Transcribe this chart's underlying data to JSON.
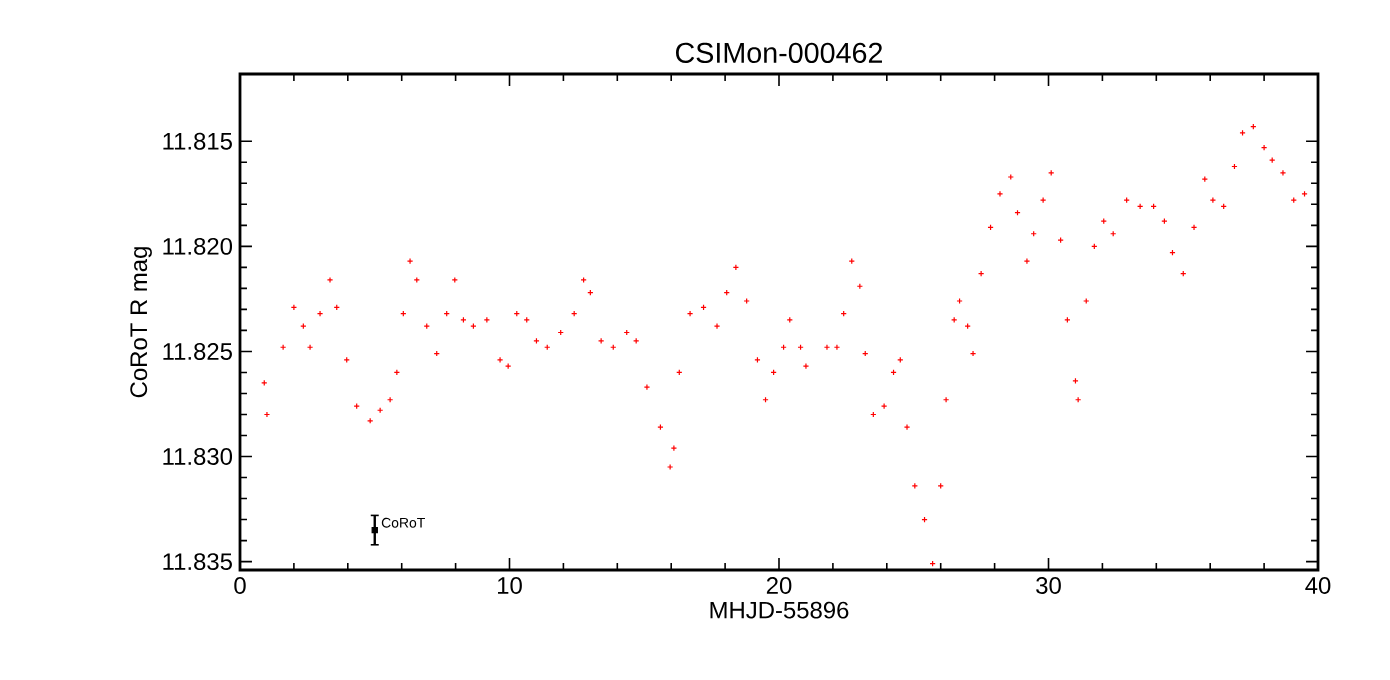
{
  "chart_data": {
    "type": "scatter",
    "title": "CSIMon-000462",
    "xlabel": "MHJD-55896",
    "ylabel": "CoRoT R mag",
    "xlim": [
      0,
      40
    ],
    "ylim": [
      11.8354,
      11.8118
    ],
    "xticks": [
      0,
      10,
      20,
      30,
      40
    ],
    "yticks": [
      11.815,
      {
        "value": 11.82,
        "label": "11.820"
      },
      11.825,
      {
        "value": 11.83,
        "label": "11.830"
      },
      11.835
    ],
    "marker": "cross",
    "series": [
      {
        "color": "#ff0000",
        "x": [
          0.9,
          1.0,
          1.6,
          2.0,
          2.35,
          2.6,
          2.97,
          3.34,
          3.59,
          3.96,
          4.33,
          4.83,
          5.2,
          5.57,
          5.82,
          6.06,
          6.31,
          6.56,
          6.93,
          7.3,
          7.67,
          7.97,
          8.29,
          8.66,
          9.16,
          9.65,
          9.95,
          10.27,
          10.64,
          11.0,
          11.4,
          11.9,
          12.4,
          12.75,
          13.0,
          13.4,
          13.85,
          14.35,
          14.7,
          15.1,
          15.6,
          15.96,
          16.1,
          16.3,
          16.7,
          17.2,
          17.7,
          18.06,
          18.4,
          18.8,
          19.2,
          19.5,
          19.8,
          20.17,
          20.4,
          20.8,
          21.0,
          21.78,
          22.15,
          22.4,
          22.7,
          23.0,
          23.2,
          23.5,
          23.9,
          24.25,
          24.5,
          24.75,
          25.04,
          25.4,
          25.7,
          26.0,
          26.2,
          26.5,
          26.7,
          27.0,
          27.2,
          27.5,
          27.85,
          28.2,
          28.6,
          28.85,
          29.2,
          29.45,
          29.8,
          30.1,
          30.45,
          30.7,
          31.0,
          31.1,
          31.4,
          31.7,
          32.05,
          32.4,
          32.9,
          33.4,
          33.9,
          34.3,
          34.6,
          35.0,
          35.4,
          35.8,
          36.1,
          36.5,
          36.9,
          37.2,
          37.6,
          38.0,
          38.3,
          38.7,
          39.1,
          39.5
        ],
        "values": [
          11.8265,
          11.828,
          11.8248,
          11.8229,
          11.8238,
          11.8248,
          11.8232,
          11.8216,
          11.8229,
          11.8254,
          11.8276,
          11.8283,
          11.8278,
          11.8273,
          11.826,
          11.8232,
          11.8207,
          11.8216,
          11.8238,
          11.8251,
          11.8232,
          11.8216,
          11.8235,
          11.8238,
          11.8235,
          11.8254,
          11.8257,
          11.8232,
          11.8235,
          11.8245,
          11.8248,
          11.8241,
          11.8232,
          11.8216,
          11.8222,
          11.8245,
          11.8248,
          11.8241,
          11.8245,
          11.8267,
          11.8286,
          11.8305,
          11.8296,
          11.826,
          11.8232,
          11.8229,
          11.8238,
          11.8222,
          11.821,
          11.8226,
          11.8254,
          11.8273,
          11.826,
          11.8248,
          11.8235,
          11.8248,
          11.8257,
          11.8248,
          11.8248,
          11.8232,
          11.8207,
          11.8219,
          11.8251,
          11.828,
          11.8276,
          11.826,
          11.8254,
          11.8286,
          11.8314,
          11.833,
          11.8351,
          11.8314,
          11.8273,
          11.8235,
          11.8226,
          11.8238,
          11.8251,
          11.8213,
          11.8191,
          11.8175,
          11.8167,
          11.8184,
          11.8207,
          11.8194,
          11.8178,
          11.8165,
          11.8197,
          11.8235,
          11.8264,
          11.8273,
          11.8226,
          11.82,
          11.8188,
          11.8194,
          11.8178,
          11.8181,
          11.8181,
          11.8188,
          11.8203,
          11.8213,
          11.8191,
          11.8168,
          11.8178,
          11.8181,
          11.8162,
          11.8146,
          11.8143,
          11.8153,
          11.8159,
          11.8165,
          11.8178,
          11.8175
        ]
      },
      {
        "color": "#000000",
        "marker": "square",
        "x": [
          5.0
        ],
        "values": [
          11.8335
        ],
        "errors": [
          0.0007
        ]
      }
    ],
    "annotations": [
      {
        "text": "CoRoT",
        "x": 5.0,
        "y": 11.8335
      }
    ]
  }
}
